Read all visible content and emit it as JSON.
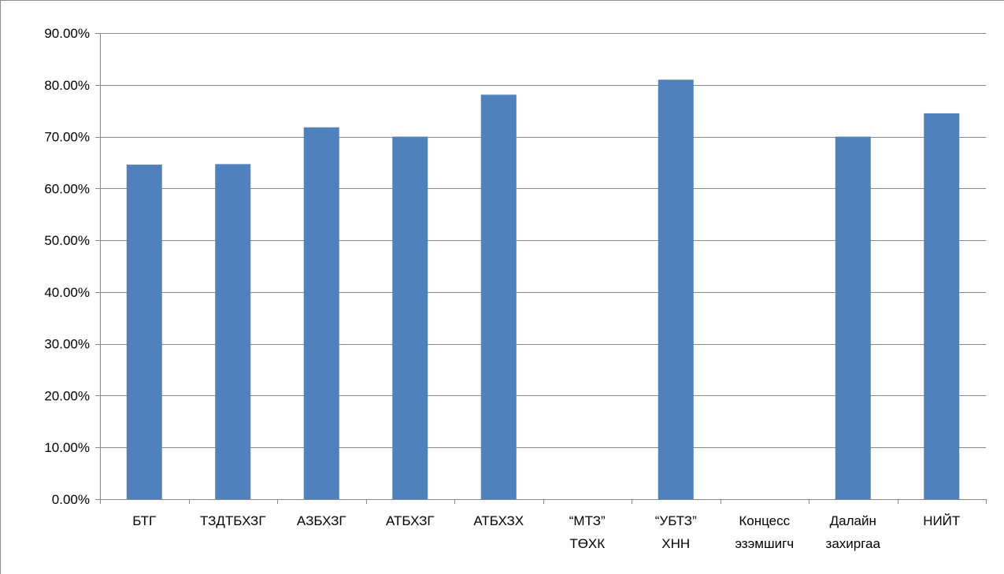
{
  "chart_data": {
    "type": "bar",
    "title": "",
    "xlabel": "",
    "ylabel": "",
    "categories": [
      [
        "БТГ"
      ],
      [
        "ТЗДТБХЗГ"
      ],
      [
        "АЗБХЗГ"
      ],
      [
        "АТБХЗГ"
      ],
      [
        "АТБХЗХ"
      ],
      [
        "“МТЗ”",
        "ТӨХК"
      ],
      [
        "“УБТЗ”",
        "ХНН"
      ],
      [
        "Концесс",
        "эзэмшигч"
      ],
      [
        "Далайн",
        "захиргаа"
      ],
      [
        "НИЙТ"
      ]
    ],
    "values": [
      64.6,
      64.7,
      71.8,
      70.0,
      78.1,
      0,
      81.0,
      0,
      70.0,
      74.5
    ],
    "ylim": [
      0,
      90
    ],
    "yticks": [
      0,
      10,
      20,
      30,
      40,
      50,
      60,
      70,
      80,
      90
    ],
    "ytick_labels": [
      "0.00%",
      "10.00%",
      "20.00%",
      "30.00%",
      "40.00%",
      "50.00%",
      "60.00%",
      "70.00%",
      "80.00%",
      "90.00%"
    ],
    "grid": true,
    "legend": "none",
    "bar_color": "#4f81bd",
    "grid_color": "#878787"
  }
}
